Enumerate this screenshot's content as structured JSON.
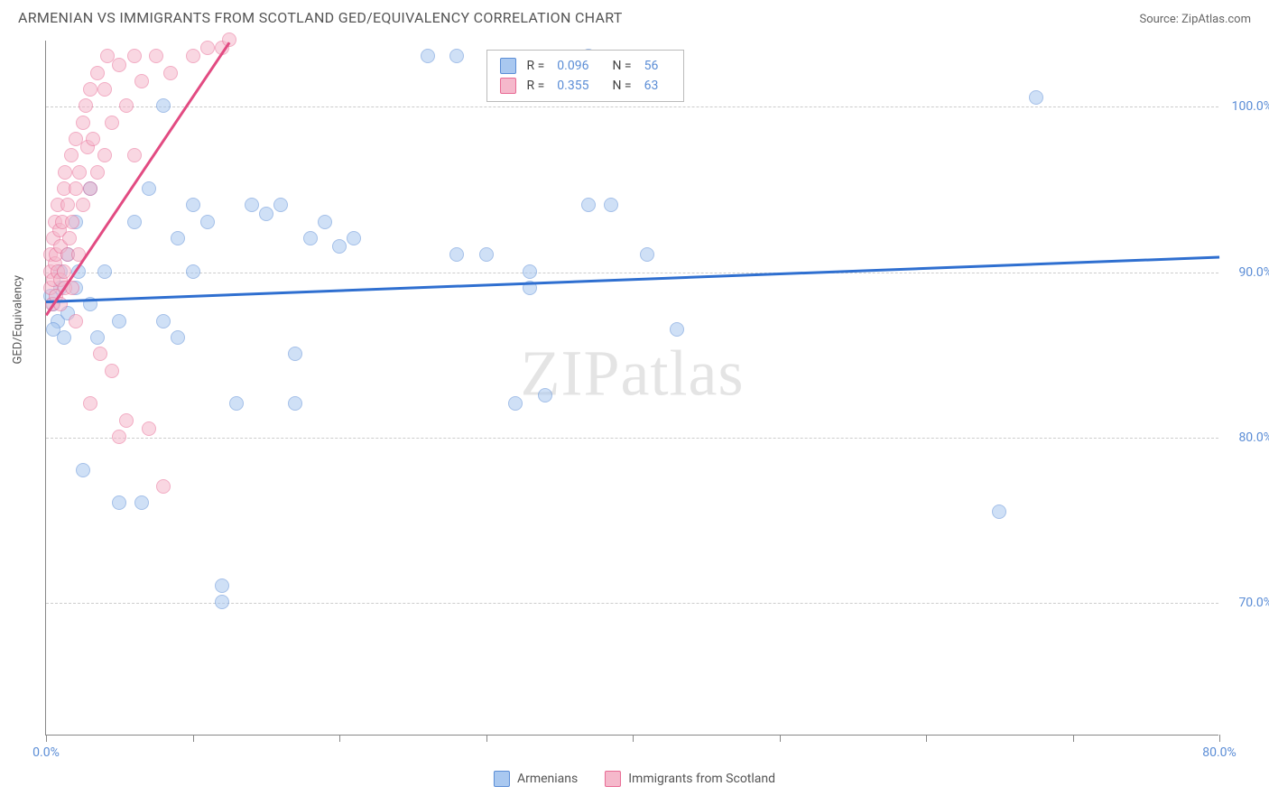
{
  "title": "ARMENIAN VS IMMIGRANTS FROM SCOTLAND GED/EQUIVALENCY CORRELATION CHART",
  "source": "Source: ZipAtlas.com",
  "ylabel": "GED/Equivalency",
  "watermark": "ZIPatlas",
  "chart": {
    "type": "scatter",
    "xlim": [
      0,
      80
    ],
    "ylim": [
      62,
      104
    ],
    "xtick_positions": [
      0,
      10,
      20,
      30,
      40,
      50,
      60,
      70,
      80
    ],
    "xtick_labels": {
      "0": "0.0%",
      "80": "80.0%"
    },
    "ytick_positions": [
      70,
      80,
      90,
      100
    ],
    "ytick_labels": [
      "70.0%",
      "80.0%",
      "90.0%",
      "100.0%"
    ],
    "grid_color": "#cccccc",
    "background_color": "#ffffff",
    "point_radius": 8,
    "point_opacity": 0.55,
    "series": [
      {
        "name": "Armenians",
        "fill": "#a9c8f0",
        "stroke": "#5b8dd6",
        "trend_color": "#2f6fd0",
        "R": "0.096",
        "N": "56",
        "trendline": {
          "x1": 0,
          "y1": 88.3,
          "x2": 80,
          "y2": 91.0
        },
        "points": [
          [
            0.5,
            88
          ],
          [
            0.8,
            87
          ],
          [
            1,
            89
          ],
          [
            1,
            90
          ],
          [
            1.2,
            86
          ],
          [
            1.5,
            91
          ],
          [
            1.5,
            87.5
          ],
          [
            2,
            93
          ],
          [
            2,
            89
          ],
          [
            2.2,
            90
          ],
          [
            2.5,
            78
          ],
          [
            3,
            95
          ],
          [
            3,
            88
          ],
          [
            3.5,
            86
          ],
          [
            4,
            90
          ],
          [
            5,
            87
          ],
          [
            5,
            76
          ],
          [
            6,
            93
          ],
          [
            6.5,
            76
          ],
          [
            7,
            95
          ],
          [
            8,
            87
          ],
          [
            8,
            100
          ],
          [
            9,
            92
          ],
          [
            9,
            86
          ],
          [
            10,
            94
          ],
          [
            10,
            90
          ],
          [
            11,
            93
          ],
          [
            12,
            71
          ],
          [
            12,
            70
          ],
          [
            13,
            82
          ],
          [
            14,
            94
          ],
          [
            15,
            93.5
          ],
          [
            16,
            94
          ],
          [
            17,
            82
          ],
          [
            17,
            85
          ],
          [
            18,
            92
          ],
          [
            19,
            93
          ],
          [
            20,
            91.5
          ],
          [
            21,
            92
          ],
          [
            26,
            103
          ],
          [
            28,
            103
          ],
          [
            28,
            91
          ],
          [
            30,
            91
          ],
          [
            32,
            82
          ],
          [
            33,
            90
          ],
          [
            33,
            89
          ],
          [
            34,
            82.5
          ],
          [
            37,
            103
          ],
          [
            37,
            94
          ],
          [
            38.5,
            94
          ],
          [
            41,
            91
          ],
          [
            43,
            86.5
          ],
          [
            65,
            75.5
          ],
          [
            67.5,
            100.5
          ],
          [
            0.3,
            88.5
          ],
          [
            0.5,
            86.5
          ]
        ]
      },
      {
        "name": "Immigrants from Scotland",
        "fill": "#f5b8cb",
        "stroke": "#e86a94",
        "trend_color": "#e24b82",
        "R": "0.355",
        "N": "63",
        "trendline": {
          "x1": 0,
          "y1": 87.5,
          "x2": 12.5,
          "y2": 104
        },
        "points": [
          [
            0.3,
            89
          ],
          [
            0.3,
            90
          ],
          [
            0.3,
            91
          ],
          [
            0.4,
            88
          ],
          [
            0.5,
            92
          ],
          [
            0.5,
            89.5
          ],
          [
            0.6,
            90.5
          ],
          [
            0.6,
            93
          ],
          [
            0.7,
            91
          ],
          [
            0.7,
            88.5
          ],
          [
            0.8,
            94
          ],
          [
            0.8,
            90
          ],
          [
            0.9,
            92.5
          ],
          [
            1,
            88
          ],
          [
            1,
            89.5
          ],
          [
            1,
            91.5
          ],
          [
            1.1,
            93
          ],
          [
            1.2,
            90
          ],
          [
            1.2,
            95
          ],
          [
            1.3,
            89
          ],
          [
            1.3,
            96
          ],
          [
            1.5,
            91
          ],
          [
            1.5,
            94
          ],
          [
            1.6,
            92
          ],
          [
            1.7,
            97
          ],
          [
            1.8,
            89
          ],
          [
            1.8,
            93
          ],
          [
            2,
            87
          ],
          [
            2,
            95
          ],
          [
            2,
            98
          ],
          [
            2.2,
            91
          ],
          [
            2.3,
            96
          ],
          [
            2.5,
            99
          ],
          [
            2.5,
            94
          ],
          [
            2.7,
            100
          ],
          [
            2.8,
            97.5
          ],
          [
            3,
            82
          ],
          [
            3,
            101
          ],
          [
            3,
            95
          ],
          [
            3.2,
            98
          ],
          [
            3.5,
            102
          ],
          [
            3.5,
            96
          ],
          [
            3.7,
            85
          ],
          [
            4,
            101
          ],
          [
            4,
            97
          ],
          [
            4.2,
            103
          ],
          [
            4.5,
            99
          ],
          [
            4.5,
            84
          ],
          [
            5,
            80
          ],
          [
            5,
            102.5
          ],
          [
            5.5,
            100
          ],
          [
            5.5,
            81
          ],
          [
            6,
            103
          ],
          [
            6,
            97
          ],
          [
            6.5,
            101.5
          ],
          [
            7,
            80.5
          ],
          [
            7.5,
            103
          ],
          [
            8,
            77
          ],
          [
            8.5,
            102
          ],
          [
            10,
            103
          ],
          [
            11,
            103.5
          ],
          [
            12,
            103.5
          ],
          [
            12.5,
            104
          ]
        ]
      }
    ]
  },
  "legend_stats": {
    "rows": [
      {
        "swatch_fill": "#a9c8f0",
        "swatch_stroke": "#5b8dd6",
        "R": "0.096",
        "N": "56"
      },
      {
        "swatch_fill": "#f5b8cb",
        "swatch_stroke": "#e86a94",
        "R": "0.355",
        "N": "63"
      }
    ]
  },
  "bottom_legend": [
    {
      "swatch_fill": "#a9c8f0",
      "swatch_stroke": "#5b8dd6",
      "label": "Armenians"
    },
    {
      "swatch_fill": "#f5b8cb",
      "swatch_stroke": "#e86a94",
      "label": "Immigrants from Scotland"
    }
  ]
}
